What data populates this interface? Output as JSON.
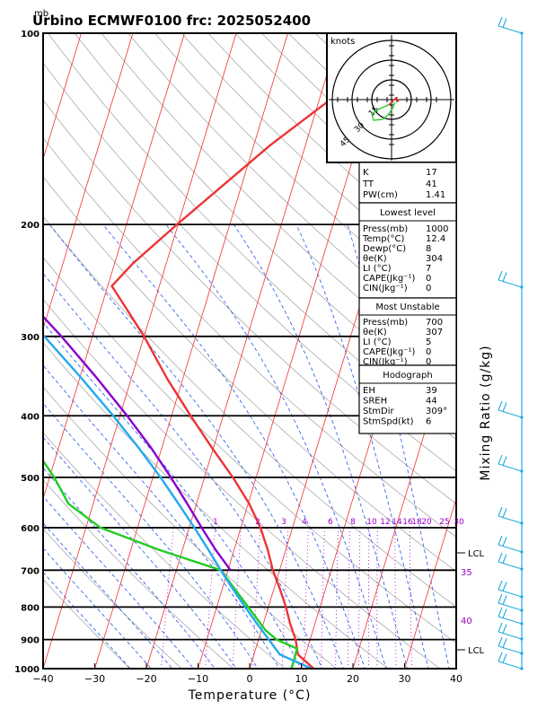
{
  "header": {
    "unit_top": "mb",
    "title": "Urbino ECMWF0100  frc: 2025052400"
  },
  "chart_data": {
    "type": "line",
    "title": "Urbino ECMWF0100  frc: 2025052400",
    "xlabel": "Temperature (°C)",
    "ylabel": "Mixing Ratio (g/kg)",
    "y_scale": "log pressure (mb), skew-T",
    "xlim": [
      -40,
      40
    ],
    "ylim": [
      1000,
      100
    ],
    "x_ticks": [
      "−40",
      "−30",
      "−20",
      "−10",
      "0",
      "10",
      "20",
      "30",
      "40"
    ],
    "y_ticks": [
      "100",
      "200",
      "300",
      "400",
      "500",
      "600",
      "700",
      "800",
      "900",
      "1000"
    ],
    "mixing_ratio_labels": [
      "1",
      "2",
      "3",
      "4",
      "6",
      "8",
      "10",
      "12",
      "14",
      "16",
      "18",
      "20",
      "25",
      "30"
    ],
    "right_labels": [
      "LCL",
      "35",
      "40",
      "LCL"
    ],
    "series": [
      {
        "color": "#ee3333",
        "points": [
          [
            1000,
            12.4
          ],
          [
            950,
            8.5
          ],
          [
            900,
            7.2
          ],
          [
            850,
            5.2
          ],
          [
            800,
            3.4
          ],
          [
            750,
            1.2
          ],
          [
            700,
            -1.3
          ],
          [
            650,
            -3.5
          ],
          [
            600,
            -6.2
          ],
          [
            550,
            -9.8
          ],
          [
            500,
            -14.5
          ],
          [
            450,
            -20.2
          ],
          [
            400,
            -26.3
          ],
          [
            350,
            -33.0
          ],
          [
            300,
            -40.0
          ],
          [
            270,
            -45.3
          ],
          [
            250,
            -49.2
          ],
          [
            230,
            -46.4
          ],
          [
            200,
            -40.2
          ],
          [
            150,
            -26.8
          ],
          [
            100,
            -4.8
          ]
        ]
      },
      {
        "color": "#22cc22",
        "points": [
          [
            1000,
            8.1
          ],
          [
            930,
            8.0
          ],
          [
            900,
            3.5
          ],
          [
            870,
            0.8
          ],
          [
            800,
            -3.9
          ],
          [
            700,
            -11.4
          ],
          [
            650,
            -24.6
          ],
          [
            600,
            -37.2
          ],
          [
            550,
            -44.8
          ],
          [
            500,
            -49.1
          ],
          [
            400,
            -60.8
          ],
          [
            300,
            -74.1
          ],
          [
            250,
            -83.2
          ],
          [
            200,
            -90.0
          ],
          [
            150,
            -99.0
          ],
          [
            100,
            -112.0
          ]
        ]
      },
      {
        "color": "#22aaee",
        "points": [
          [
            1000,
            12.0
          ],
          [
            950,
            5.0
          ],
          [
            900,
            2.0
          ],
          [
            850,
            -1.2
          ],
          [
            800,
            -4.5
          ],
          [
            750,
            -7.9
          ],
          [
            700,
            -11.4
          ],
          [
            650,
            -15.0
          ],
          [
            600,
            -19.0
          ],
          [
            550,
            -23.5
          ],
          [
            500,
            -28.5
          ],
          [
            450,
            -34.4
          ],
          [
            400,
            -41.3
          ],
          [
            350,
            -49.5
          ],
          [
            300,
            -59.3
          ],
          [
            250,
            -71.5
          ],
          [
            200,
            -86.5
          ],
          [
            150,
            -106.0
          ]
        ]
      },
      {
        "color": "#8800cc",
        "points": [
          [
            700,
            -9.5
          ],
          [
            650,
            -13.6
          ],
          [
            600,
            -17.6
          ],
          [
            550,
            -21.8
          ],
          [
            500,
            -26.5
          ],
          [
            450,
            -32.0
          ],
          [
            400,
            -38.6
          ],
          [
            350,
            -46.5
          ],
          [
            300,
            -56.0
          ],
          [
            250,
            -68.0
          ],
          [
            200,
            -83.0
          ],
          [
            150,
            -103.0
          ]
        ]
      }
    ]
  },
  "hodograph": {
    "unit": "knots",
    "rings": [
      "15",
      "30",
      "45"
    ]
  },
  "indices": [
    {
      "label": "K",
      "value": "17"
    },
    {
      "label": "TT",
      "value": "41"
    },
    {
      "label": "PW(cm)",
      "value": "1.41"
    }
  ],
  "lowest_level": {
    "heading": "Lowest level",
    "rows": [
      {
        "label": "Press(mb)",
        "value": "1000"
      },
      {
        "label": "Temp(°C)",
        "value": "12.4"
      },
      {
        "label": "Dewp(°C)",
        "value": "8"
      },
      {
        "label": "θe(K)",
        "value": "304"
      },
      {
        "label": "LI (°C)",
        "value": "7"
      },
      {
        "label": "CAPE(Jkg⁻¹)",
        "value": "0"
      },
      {
        "label": "CIN(Jkg⁻¹)",
        "value": "0"
      }
    ]
  },
  "most_unstable": {
    "heading": "Most Unstable",
    "rows": [
      {
        "label": "Press(mb)",
        "value": "700"
      },
      {
        "label": "θe(K)",
        "value": "307"
      },
      {
        "label": "LI (°C)",
        "value": "5"
      },
      {
        "label": "CAPE(Jkg⁻¹)",
        "value": "0"
      },
      {
        "label": "CIN(Jkg⁻¹)",
        "value": "0"
      }
    ]
  },
  "hodograph_box": {
    "heading": "Hodograph",
    "rows": [
      {
        "label": "EH",
        "value": "39"
      },
      {
        "label": "SREH",
        "value": "44"
      },
      {
        "label": "StmDir",
        "value": "309°"
      },
      {
        "label": "StmSpd(kt)",
        "value": "6"
      }
    ]
  },
  "colors": {
    "isotherm": "#f03030",
    "dry_adiabat": "#aaaaaa",
    "moist_adiabat": "#2255ee",
    "mixing_ratio": "#aa00cc",
    "wind": "#22aadd",
    "hodo_trace": "#22cc22"
  }
}
